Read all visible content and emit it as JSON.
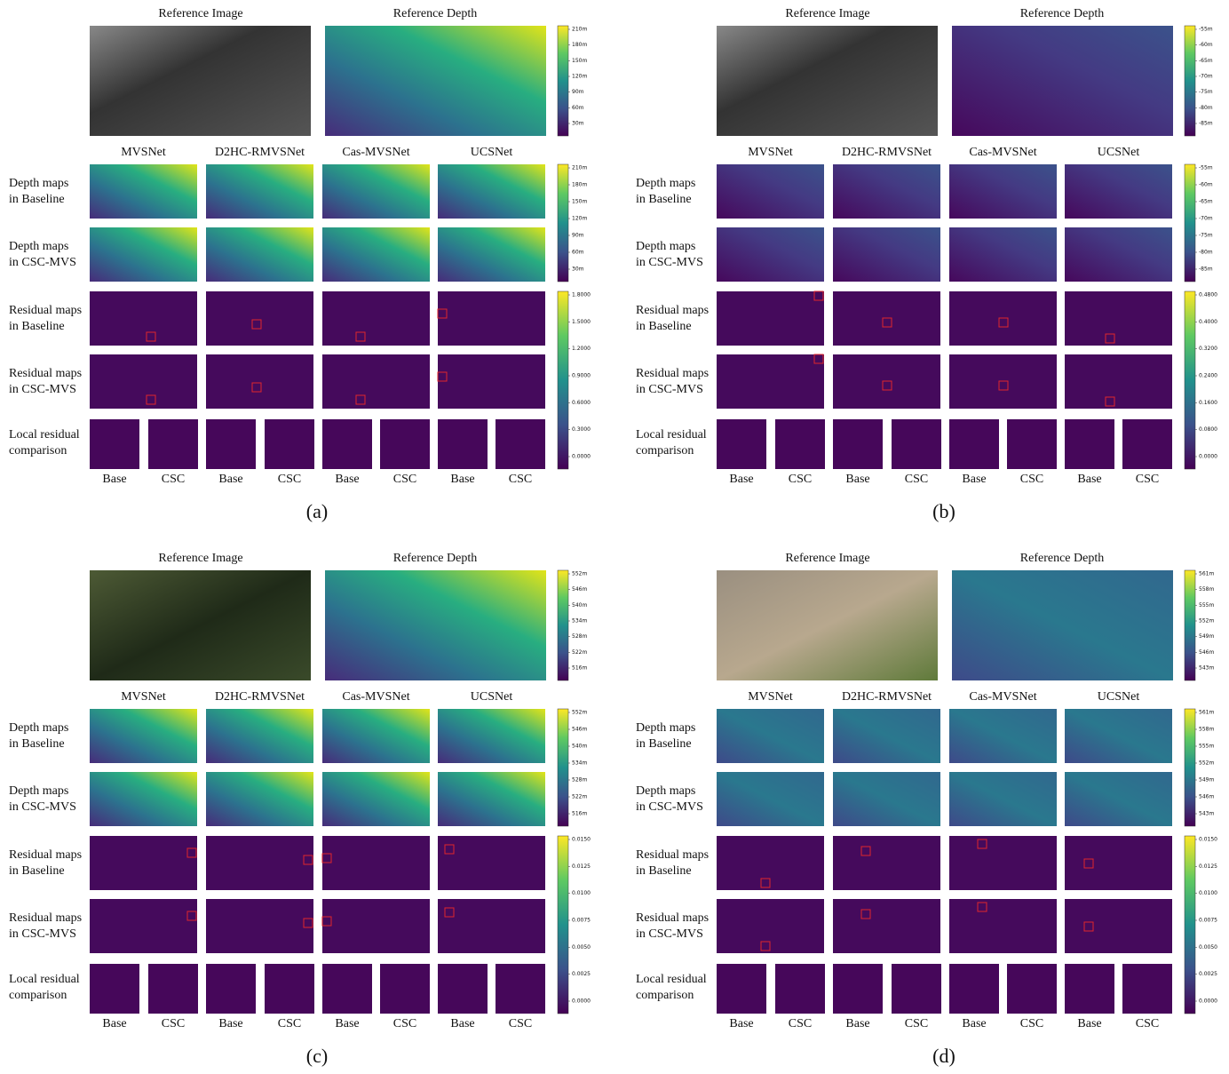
{
  "panels": [
    {
      "label": "(a)",
      "ref_titles": [
        "Reference Image",
        "Reference Depth"
      ],
      "methods": [
        "MVSNet",
        "D2HC-RMVSNet",
        "Cas-MVSNet",
        "UCSNet"
      ],
      "row_labels": [
        [
          "Depth maps",
          "in Baseline"
        ],
        [
          "Depth maps",
          "in CSC-MVS"
        ],
        [
          "Residual maps",
          "in Baseline"
        ],
        [
          "Residual maps",
          "in CSC-MVS"
        ],
        [
          "Local residual",
          "comparison"
        ]
      ],
      "crop_labels": [
        "Base",
        "CSC",
        "Base",
        "CSC",
        "Base",
        "CSC",
        "Base",
        "CSC"
      ],
      "ref_colorbar": [
        "210m",
        "180m",
        "150m",
        "120m",
        "90m",
        "60m",
        "30m"
      ],
      "depth_colorbar": [
        "210m",
        "180m",
        "150m",
        "120m",
        "90m",
        "60m",
        "30m"
      ],
      "residual_colorbar": [
        "1.8000",
        "1.5000",
        "1.2000",
        "0.9000",
        "0.6000",
        "0.3000",
        "0.0000"
      ]
    },
    {
      "label": "(b)",
      "ref_titles": [
        "Reference Image",
        "Reference Depth"
      ],
      "methods": [
        "MVSNet",
        "D2HC-RMVSNet",
        "Cas-MVSNet",
        "UCSNet"
      ],
      "row_labels": [
        [
          "Depth maps",
          "in Baseline"
        ],
        [
          "Depth maps",
          "in CSC-MVS"
        ],
        [
          "Residual maps",
          "in Baseline"
        ],
        [
          "Residual maps",
          "in CSC-MVS"
        ],
        [
          "Local residual",
          "comparison"
        ]
      ],
      "crop_labels": [
        "Base",
        "CSC",
        "Base",
        "CSC",
        "Base",
        "CSC",
        "Base",
        "CSC"
      ],
      "ref_colorbar": [
        "-55m",
        "-60m",
        "-65m",
        "-70m",
        "-75m",
        "-80m",
        "-85m"
      ],
      "depth_colorbar": [
        "-55m",
        "-60m",
        "-65m",
        "-70m",
        "-75m",
        "-80m",
        "-85m"
      ],
      "residual_colorbar": [
        "0.4800",
        "0.4000",
        "0.3200",
        "0.2400",
        "0.1600",
        "0.0800",
        "0.0000"
      ]
    },
    {
      "label": "(c)",
      "ref_titles": [
        "Reference Image",
        "Reference Depth"
      ],
      "methods": [
        "MVSNet",
        "D2HC-RMVSNet",
        "Cas-MVSNet",
        "UCSNet"
      ],
      "row_labels": [
        [
          "Depth maps",
          "in Baseline"
        ],
        [
          "Depth maps",
          "in CSC-MVS"
        ],
        [
          "Residual maps",
          "in Baseline"
        ],
        [
          "Residual maps",
          "in CSC-MVS"
        ],
        [
          "Local residual",
          "comparison"
        ]
      ],
      "crop_labels": [
        "Base",
        "CSC",
        "Base",
        "CSC",
        "Base",
        "CSC",
        "Base",
        "CSC"
      ],
      "ref_colorbar": [
        "552m",
        "546m",
        "540m",
        "534m",
        "528m",
        "522m",
        "516m"
      ],
      "depth_colorbar": [
        "552m",
        "546m",
        "540m",
        "534m",
        "528m",
        "522m",
        "516m"
      ],
      "residual_colorbar": [
        "0.0150",
        "0.0125",
        "0.0100",
        "0.0075",
        "0.0050",
        "0.0025",
        "0.0000"
      ]
    },
    {
      "label": "(d)",
      "ref_titles": [
        "Reference Image",
        "Reference Depth"
      ],
      "methods": [
        "MVSNet",
        "D2HC-RMVSNet",
        "Cas-MVSNet",
        "UCSNet"
      ],
      "row_labels": [
        [
          "Depth maps",
          "in Baseline"
        ],
        [
          "Depth maps",
          "in CSC-MVS"
        ],
        [
          "Residual maps",
          "in Baseline"
        ],
        [
          "Residual maps",
          "in CSC-MVS"
        ],
        [
          "Local residual",
          "comparison"
        ]
      ],
      "crop_labels": [
        "Base",
        "CSC",
        "Base",
        "CSC",
        "Base",
        "CSC",
        "Base",
        "CSC"
      ],
      "ref_colorbar": [
        "561m",
        "558m",
        "555m",
        "552m",
        "549m",
        "546m",
        "543m"
      ],
      "depth_colorbar": [
        "561m",
        "558m",
        "555m",
        "552m",
        "549m",
        "546m",
        "543m"
      ],
      "residual_colorbar": [
        "0.0150",
        "0.0125",
        "0.0100",
        "0.0075",
        "0.0050",
        "0.0025",
        "0.0000"
      ]
    }
  ]
}
